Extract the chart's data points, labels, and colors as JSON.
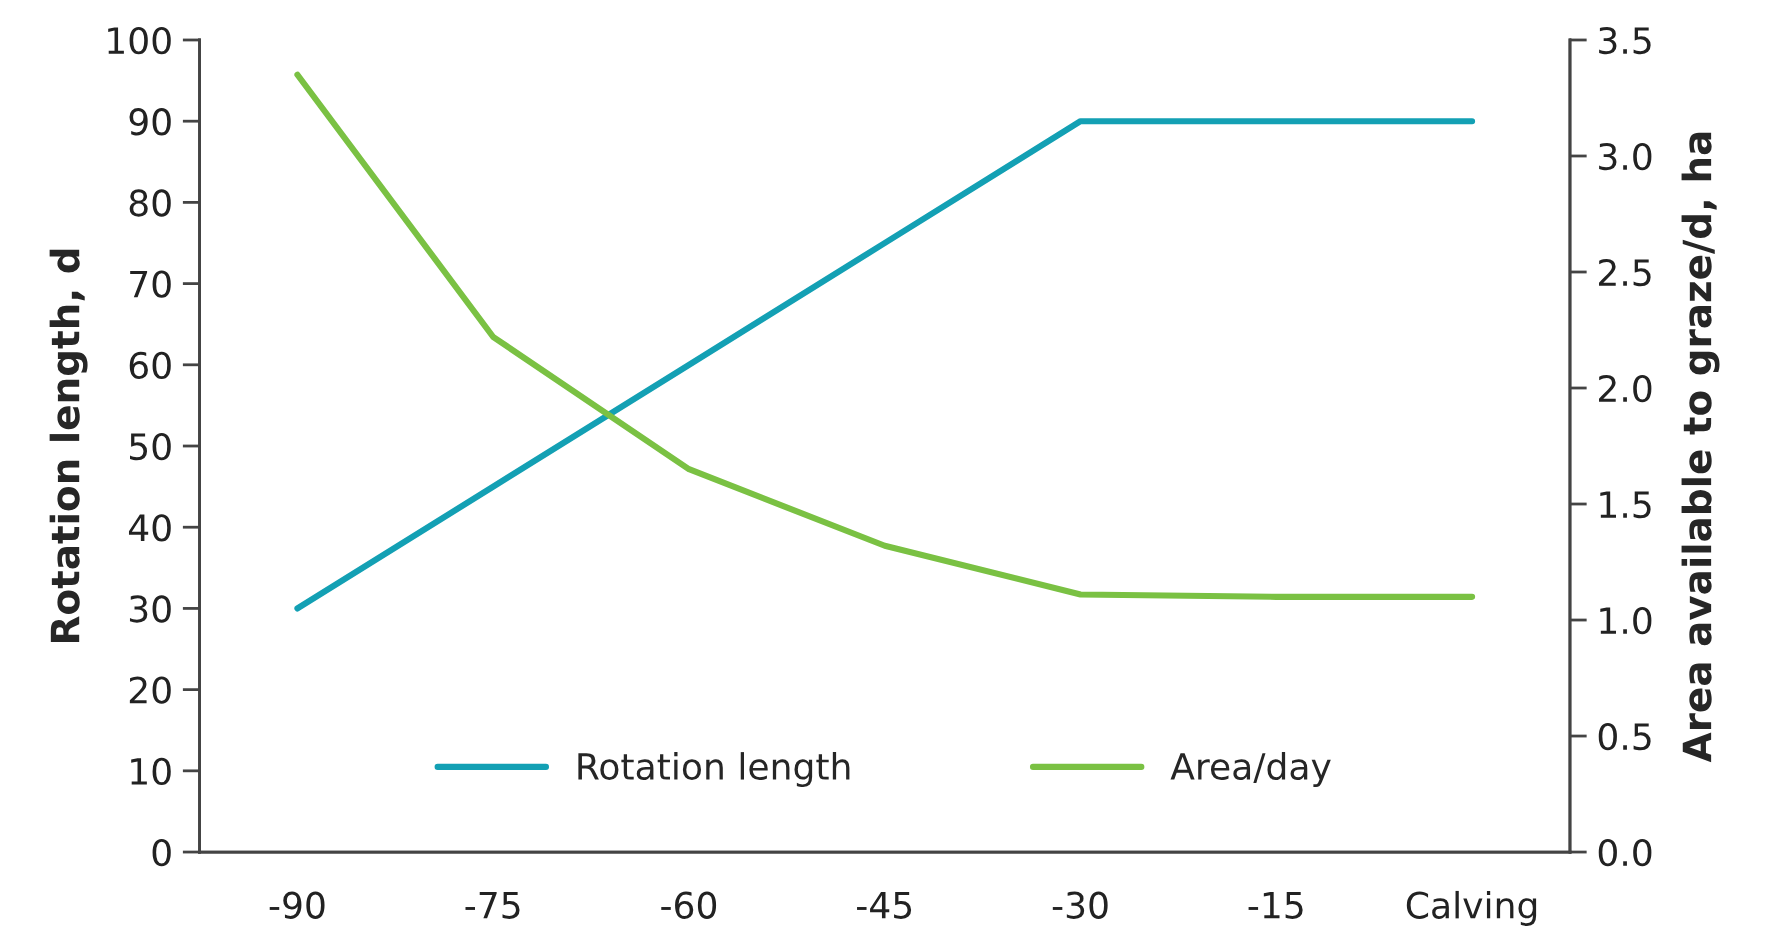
{
  "chart_data": {
    "type": "line",
    "categories": [
      "-90",
      "-75",
      "-60",
      "-45",
      "-30",
      "-15",
      "Calving"
    ],
    "ylabel": "Rotation length, d",
    "y2label": "Area available to graze/d, ha",
    "ylim": [
      0,
      100
    ],
    "yticks": [
      0,
      10,
      20,
      30,
      40,
      50,
      60,
      70,
      80,
      90,
      100
    ],
    "y2lim": [
      0,
      3.5
    ],
    "y2ticks": [
      {
        "value": 0,
        "label": "0.0"
      },
      {
        "value": 0.5,
        "label": "0.5"
      },
      {
        "value": 1,
        "label": "1.0"
      },
      {
        "value": 1.5,
        "label": "1.5"
      },
      {
        "value": 2,
        "label": "2.0"
      },
      {
        "value": 2.5,
        "label": "2.5"
      },
      {
        "value": 3,
        "label": "3.0"
      },
      {
        "value": 3.5,
        "label": "3.5"
      }
    ],
    "series": [
      {
        "name": "Rotation length",
        "color": "#13a0b4",
        "values": [
          30,
          45,
          60,
          75,
          90,
          90,
          90
        ]
      },
      {
        "name": "Area/day",
        "color": "#7ac143",
        "axis": "y2",
        "values": [
          3.35,
          2.22,
          1.65,
          1.32,
          1.11,
          1.1,
          1.1
        ]
      }
    ],
    "legend": "bottom",
    "grid": false,
    "marker": "none",
    "line_style": "solid"
  }
}
